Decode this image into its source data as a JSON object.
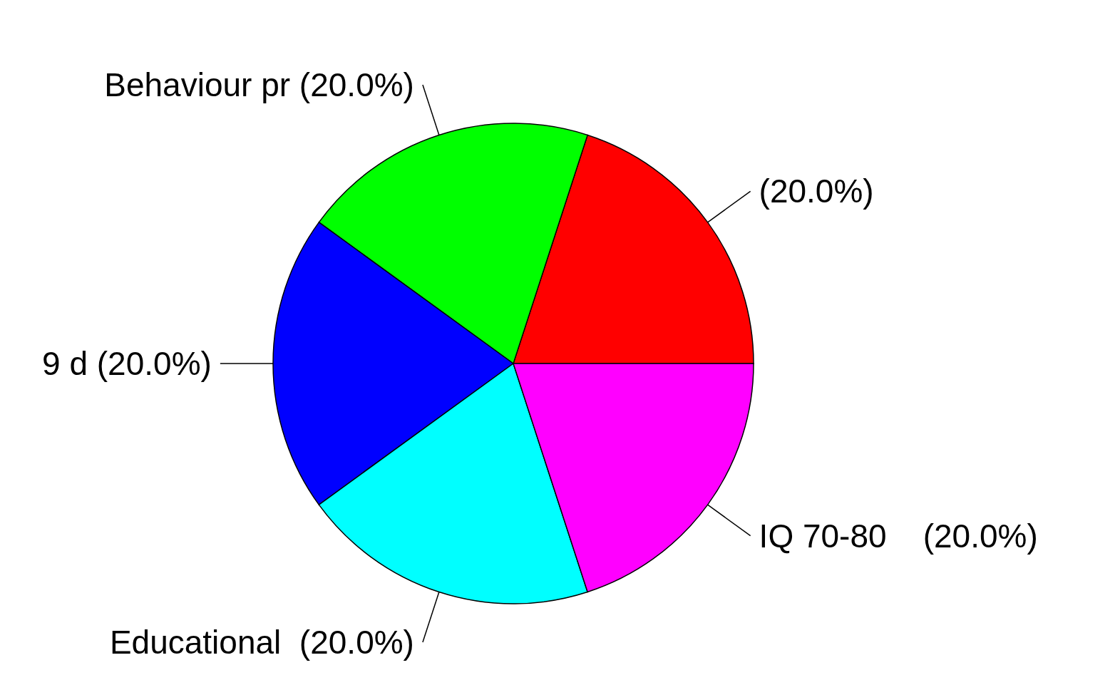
{
  "chart_data": {
    "type": "pie",
    "categories": [
      "(20.0%)",
      "Behaviour pr (20.0%)",
      "9 d (20.0%)",
      "Educational  (20.0%)",
      "IQ 70-80    (20.0%)"
    ],
    "values": [
      20,
      20,
      20,
      20,
      20
    ],
    "colors": [
      "#ff0000",
      "#00ff00",
      "#0000ff",
      "#00ffff",
      "#ff00ff"
    ]
  }
}
